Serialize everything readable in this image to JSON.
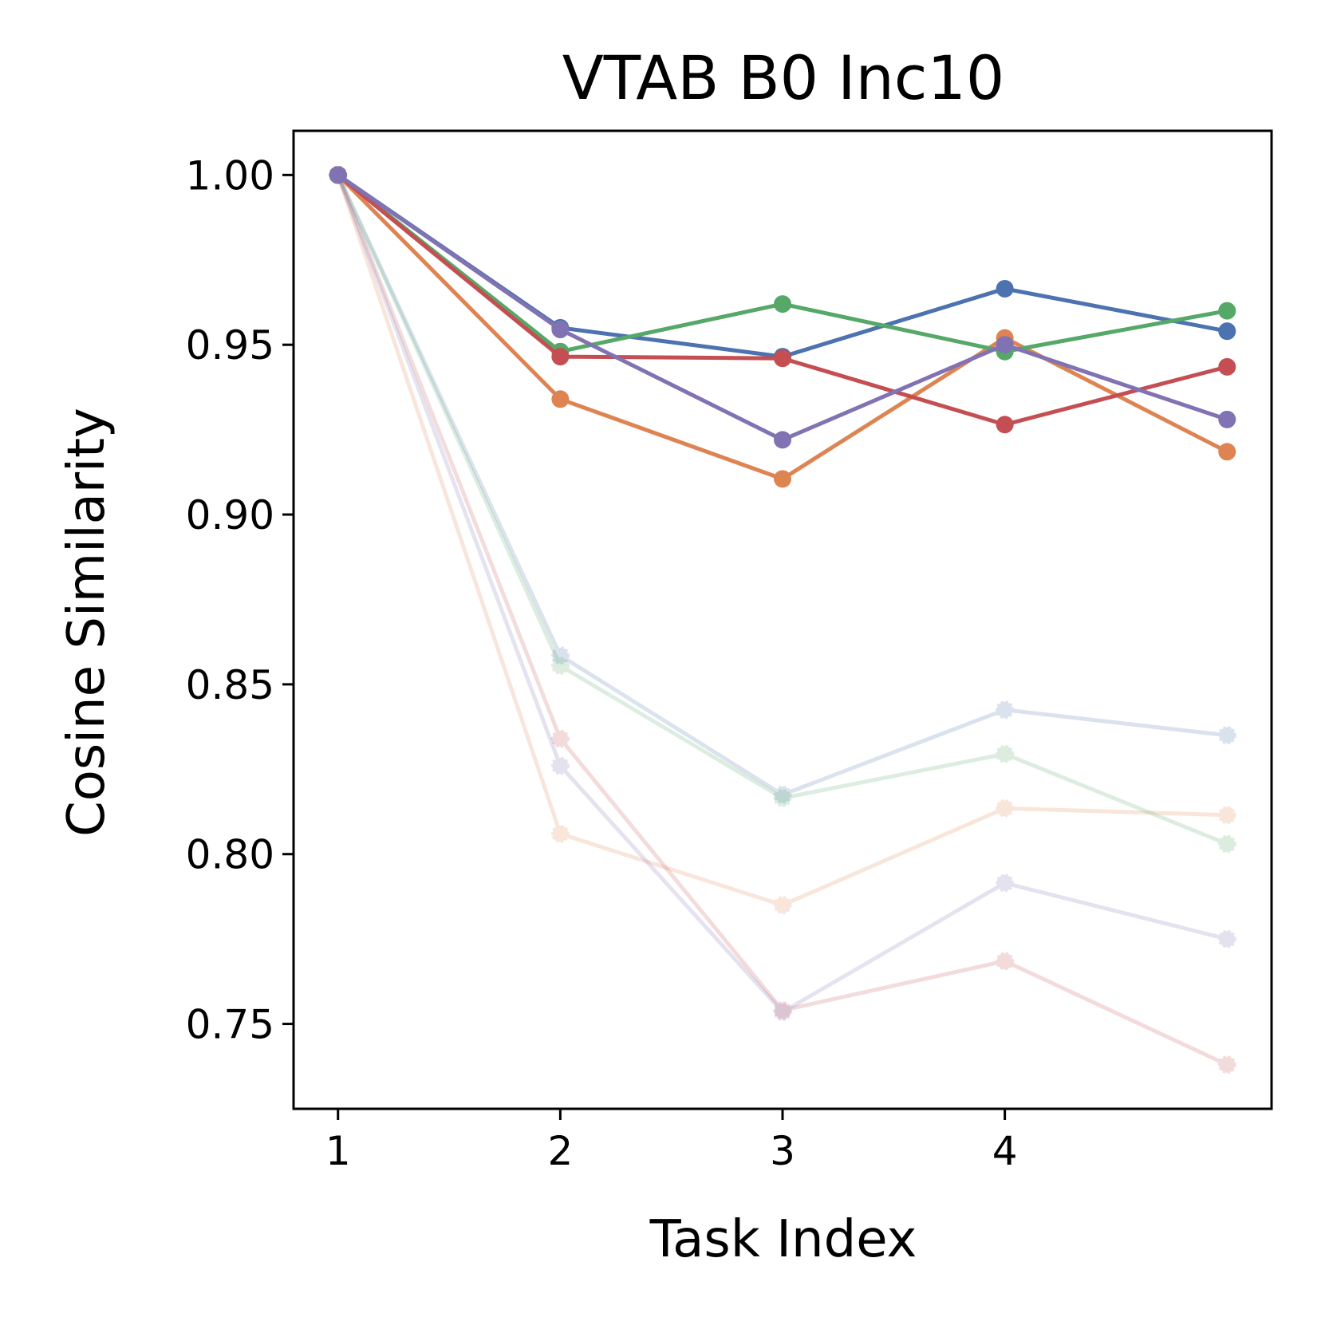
{
  "chart_data": {
    "type": "line",
    "title": "VTAB B0 Inc10",
    "xlabel": "Task Index",
    "ylabel": "Cosine Similarity",
    "x": [
      1,
      2,
      3,
      4,
      5
    ],
    "xticks": [
      "1",
      "2",
      "3",
      "4"
    ],
    "yticks": [
      "0.75",
      "0.80",
      "0.85",
      "0.90",
      "0.95",
      "1.00"
    ],
    "ylim": [
      0.725,
      1.013
    ],
    "xlim": [
      0.8,
      5.2
    ],
    "grid": false,
    "series_solid": [
      {
        "color": "#4C72B0",
        "values": [
          1.0,
          0.955,
          0.9465,
          0.9665,
          0.954
        ]
      },
      {
        "color": "#DD8452",
        "values": [
          1.0,
          0.934,
          0.9105,
          0.952,
          0.9185
        ]
      },
      {
        "color": "#55A868",
        "values": [
          1.0,
          0.948,
          0.962,
          0.948,
          0.96
        ]
      },
      {
        "color": "#C44E52",
        "values": [
          1.0,
          0.9465,
          0.946,
          0.9265,
          0.9435
        ]
      },
      {
        "color": "#8172B3",
        "values": [
          1.0,
          0.9545,
          0.922,
          0.95,
          0.928
        ]
      }
    ],
    "series_faded": [
      {
        "color": "#4C72B0",
        "values": [
          1.0,
          0.8585,
          0.8175,
          0.8425,
          0.835
        ]
      },
      {
        "color": "#DD8452",
        "values": [
          1.0,
          0.806,
          0.785,
          0.8135,
          0.8115
        ]
      },
      {
        "color": "#55A868",
        "values": [
          1.0,
          0.8555,
          0.8165,
          0.8295,
          0.803
        ]
      },
      {
        "color": "#C44E52",
        "values": [
          1.0,
          0.834,
          0.754,
          0.7685,
          0.738
        ]
      },
      {
        "color": "#8172B3",
        "values": [
          1.0,
          0.826,
          0.7535,
          0.7915,
          0.775
        ]
      }
    ]
  }
}
